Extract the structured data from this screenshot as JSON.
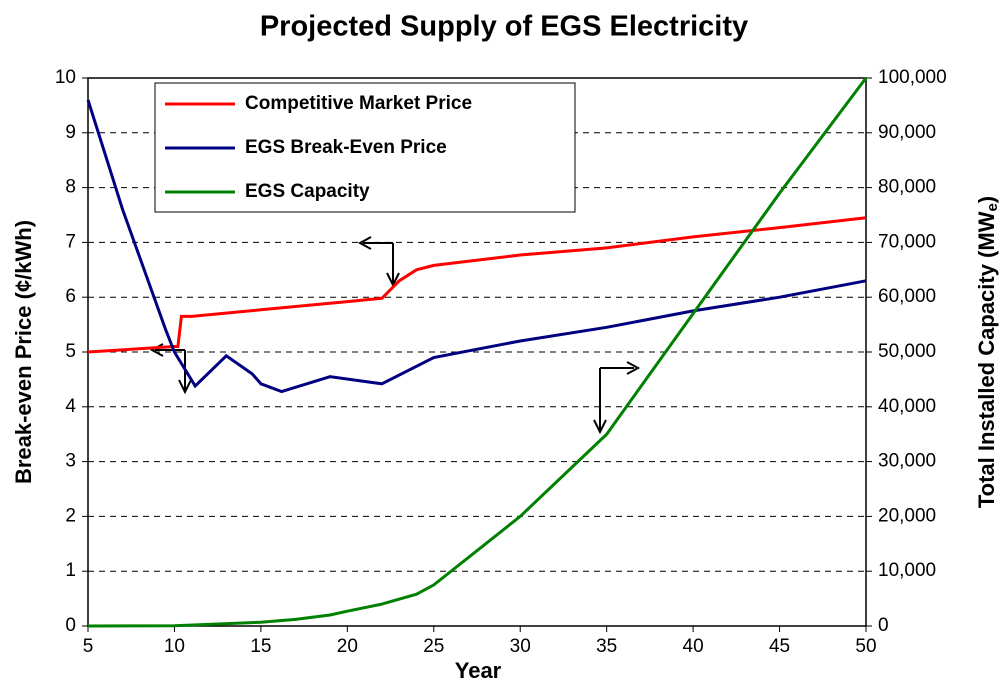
{
  "chart_data": {
    "type": "line",
    "title": "Projected Supply of EGS Electricity",
    "x_label": "Year",
    "y_label": "Break-even Price (¢/kWh)",
    "y2_label_parts": [
      "Total Installed Capacity (MW",
      "e",
      ")"
    ],
    "xlim": [
      5,
      50
    ],
    "xticks": [
      5,
      10,
      15,
      20,
      25,
      30,
      35,
      40,
      45,
      50
    ],
    "ylim": [
      0,
      10
    ],
    "yticks": [
      0,
      1,
      2,
      3,
      4,
      5,
      6,
      7,
      8,
      9,
      10
    ],
    "y2lim": [
      0,
      100000
    ],
    "y2ticks": [
      0,
      {
        "value": 10000,
        "label": "10,000"
      },
      {
        "value": 20000,
        "label": "20,000"
      },
      {
        "value": 30000,
        "label": "30,000"
      },
      {
        "value": 40000,
        "label": "40,000"
      },
      {
        "value": 50000,
        "label": "50,000"
      },
      {
        "value": 60000,
        "label": "60,000"
      },
      {
        "value": 70000,
        "label": "70,000"
      },
      {
        "value": 80000,
        "label": "80,000"
      },
      {
        "value": 90000,
        "label": "90,000"
      },
      {
        "value": 100000,
        "label": "100,000"
      }
    ],
    "grid": true,
    "legend": "upper left",
    "series": [
      {
        "name": "Competitive Market Price",
        "color": "#ff0000",
        "x": [
          5,
          10,
          10.2,
          10.4,
          11,
          15,
          20,
          22,
          23,
          24,
          25,
          30,
          35,
          40,
          45,
          50
        ],
        "values": [
          5.0,
          5.1,
          5.1,
          5.65,
          5.65,
          5.77,
          5.92,
          5.98,
          6.3,
          6.5,
          6.58,
          6.77,
          6.9,
          7.1,
          7.27,
          7.45
        ]
      },
      {
        "name": "EGS Break-Even Price",
        "color": "#000080",
        "x": [
          5,
          7,
          9.5,
          10,
          11.2,
          13,
          14.5,
          15,
          16.2,
          19,
          22,
          25,
          30,
          35,
          40,
          45,
          50
        ],
        "values": [
          9.6,
          7.6,
          5.4,
          5.0,
          4.38,
          4.93,
          4.6,
          4.42,
          4.28,
          4.55,
          4.42,
          4.9,
          5.2,
          5.45,
          5.75,
          6.0,
          6.3
        ]
      },
      {
        "name": "EGS Capacity",
        "color": "#008000",
        "axis": "y2",
        "x": [
          5,
          10,
          15,
          17,
          19,
          20,
          22,
          24,
          25,
          30,
          35,
          40,
          45,
          50
        ],
        "values": [
          0,
          50,
          700,
          1200,
          2000,
          2700,
          4000,
          5800,
          7500,
          20000,
          35000,
          57000,
          79000,
          100000
        ]
      }
    ]
  }
}
